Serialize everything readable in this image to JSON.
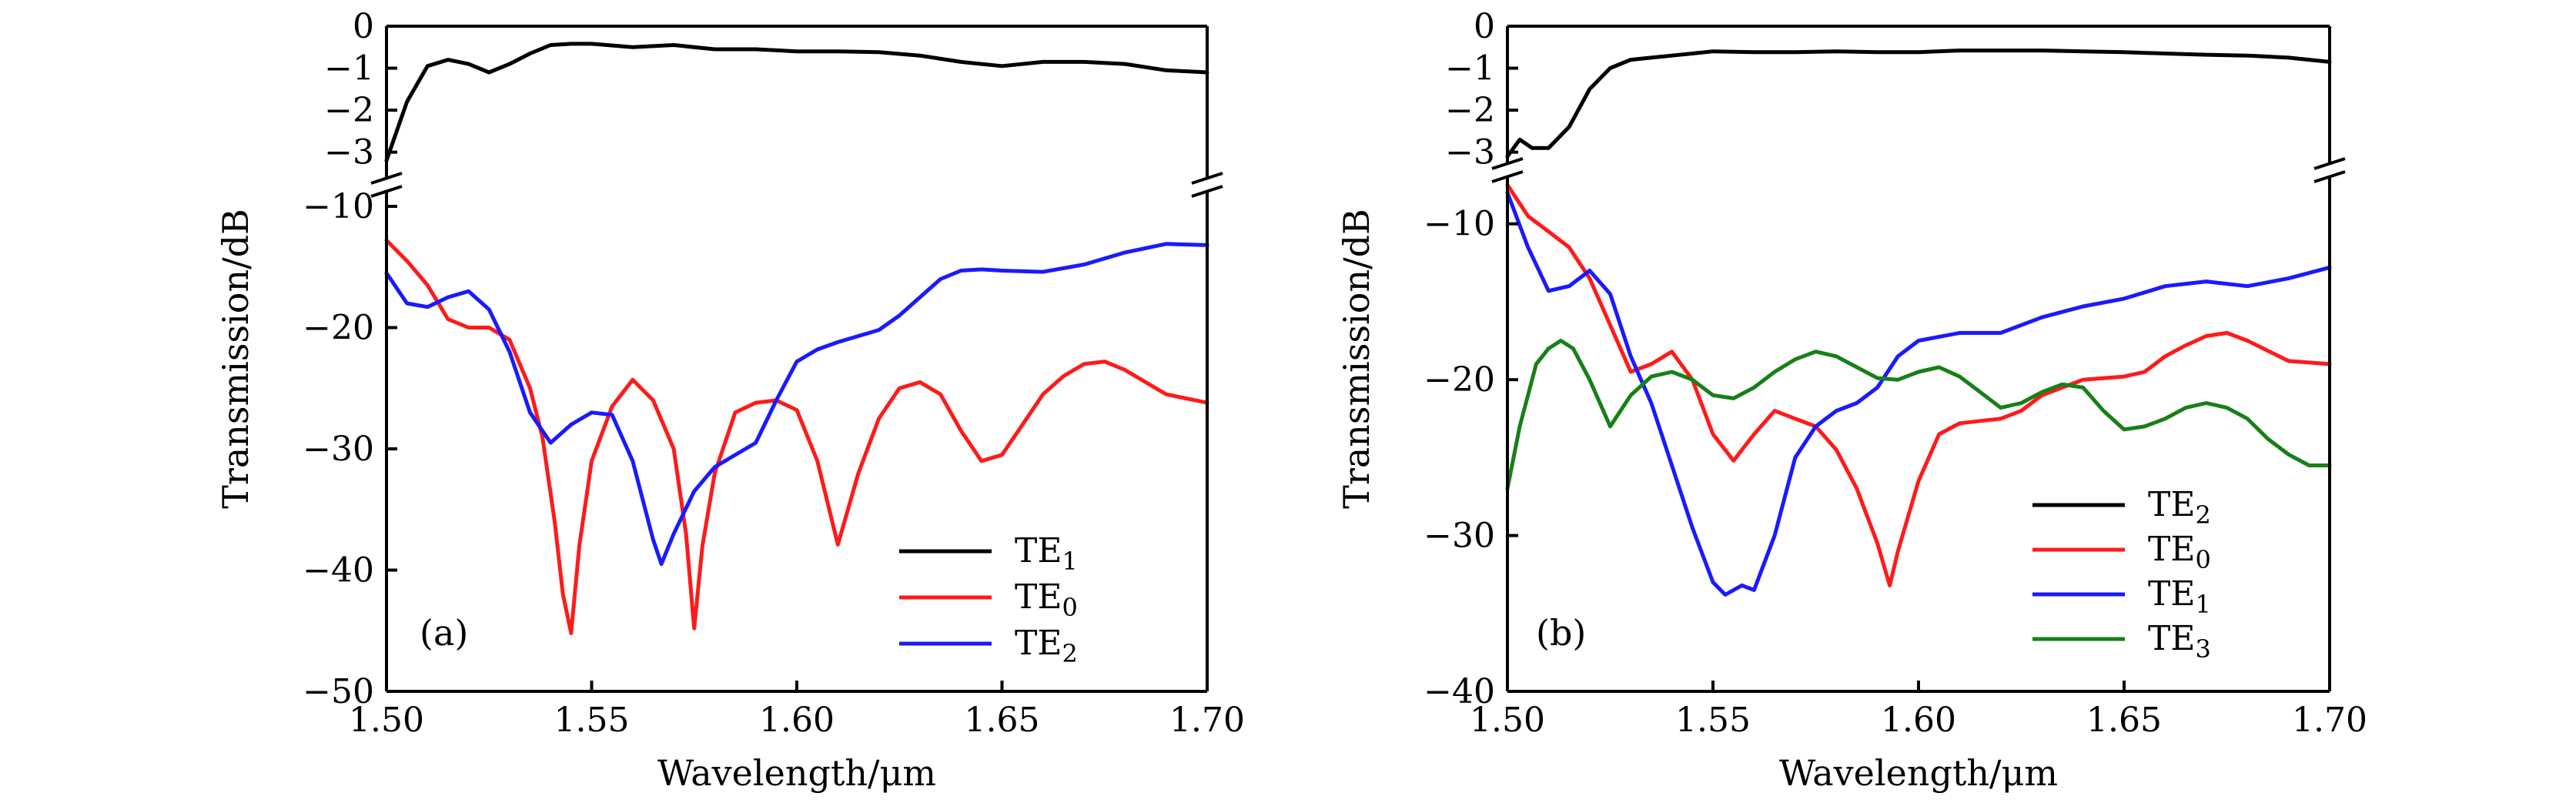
{
  "chart_data": [
    {
      "type": "line",
      "panel_label": "(a)",
      "xlabel": "Wavelength/μm",
      "ylabel": "Transmission/dB",
      "xlim": [
        1.5,
        1.7
      ],
      "x_ticks": [
        "1.50",
        "1.55",
        "1.60",
        "1.65",
        "1.70"
      ],
      "broken_y_axis": true,
      "upper_ylim": [
        -3.3,
        0
      ],
      "upper_y_ticks": [
        "0",
        "−1",
        "−2",
        "−3"
      ],
      "lower_ylim": [
        -50,
        -10
      ],
      "lower_y_ticks": [
        "−10",
        "−20",
        "−30",
        "−40",
        "−50"
      ],
      "legend_position": "bottom-right",
      "series": [
        {
          "name": "TE",
          "sub": "1",
          "color": "#000000",
          "section": "upper",
          "x": [
            1.5,
            1.505,
            1.51,
            1.515,
            1.52,
            1.525,
            1.53,
            1.535,
            1.54,
            1.545,
            1.55,
            1.56,
            1.57,
            1.58,
            1.59,
            1.6,
            1.61,
            1.62,
            1.63,
            1.64,
            1.65,
            1.66,
            1.67,
            1.68,
            1.69,
            1.7
          ],
          "y": [
            -3.2,
            -1.8,
            -0.95,
            -0.8,
            -0.9,
            -1.1,
            -0.9,
            -0.65,
            -0.45,
            -0.42,
            -0.42,
            -0.5,
            -0.45,
            -0.55,
            -0.55,
            -0.6,
            -0.6,
            -0.62,
            -0.7,
            -0.85,
            -0.95,
            -0.85,
            -0.85,
            -0.9,
            -1.05,
            -1.1
          ]
        },
        {
          "name": "TE",
          "sub": "0",
          "color": "#ff1a1a",
          "section": "lower",
          "x": [
            1.5,
            1.505,
            1.51,
            1.515,
            1.52,
            1.525,
            1.53,
            1.535,
            1.538,
            1.541,
            1.543,
            1.545,
            1.547,
            1.55,
            1.555,
            1.56,
            1.565,
            1.57,
            1.573,
            1.575,
            1.577,
            1.58,
            1.585,
            1.59,
            1.595,
            1.6,
            1.605,
            1.61,
            1.615,
            1.62,
            1.625,
            1.63,
            1.635,
            1.64,
            1.645,
            1.65,
            1.655,
            1.66,
            1.665,
            1.67,
            1.675,
            1.68,
            1.69,
            1.7
          ],
          "y": [
            -12.8,
            -14.5,
            -16.5,
            -19.3,
            -20.0,
            -20.0,
            -21.0,
            -25.0,
            -29.0,
            -36.0,
            -42.0,
            -45.2,
            -38.0,
            -31.0,
            -26.5,
            -24.3,
            -26.0,
            -30.0,
            -37.0,
            -44.8,
            -38.0,
            -32.0,
            -27.0,
            -26.2,
            -26.0,
            -26.8,
            -31.0,
            -37.9,
            -32.0,
            -27.5,
            -25.0,
            -24.5,
            -25.5,
            -28.5,
            -31.0,
            -30.5,
            -28.0,
            -25.5,
            -24.0,
            -23.0,
            -22.8,
            -23.5,
            -25.5,
            -26.2
          ]
        },
        {
          "name": "TE",
          "sub": "2",
          "color": "#1a1aff",
          "section": "lower",
          "x": [
            1.5,
            1.505,
            1.51,
            1.515,
            1.52,
            1.525,
            1.53,
            1.535,
            1.54,
            1.545,
            1.55,
            1.555,
            1.56,
            1.565,
            1.567,
            1.57,
            1.575,
            1.58,
            1.585,
            1.59,
            1.595,
            1.6,
            1.605,
            1.61,
            1.62,
            1.625,
            1.63,
            1.635,
            1.64,
            1.645,
            1.65,
            1.66,
            1.67,
            1.68,
            1.69,
            1.7
          ],
          "y": [
            -15.5,
            -18.0,
            -18.3,
            -17.5,
            -17.0,
            -18.5,
            -22.0,
            -27.0,
            -29.5,
            -28.0,
            -27.0,
            -27.2,
            -31.0,
            -37.5,
            -39.5,
            -37.0,
            -33.5,
            -31.5,
            -30.5,
            -29.5,
            -26.0,
            -22.8,
            -21.8,
            -21.2,
            -20.2,
            -19.0,
            -17.5,
            -16.0,
            -15.3,
            -15.2,
            -15.3,
            -15.4,
            -14.8,
            -13.8,
            -13.1,
            -13.2
          ]
        }
      ]
    },
    {
      "type": "line",
      "panel_label": "(b)",
      "xlabel": "Wavelength/μm",
      "ylabel": "Transmission/dB",
      "xlim": [
        1.5,
        1.7
      ],
      "x_ticks": [
        "1.50",
        "1.55",
        "1.60",
        "1.65",
        "1.70"
      ],
      "broken_y_axis": true,
      "upper_ylim": [
        -3.3,
        0
      ],
      "upper_y_ticks": [
        "0",
        "−1",
        "−2",
        "−3"
      ],
      "lower_ylim": [
        -40,
        -7
      ],
      "lower_y_ticks": [
        "−10",
        "−20",
        "−30",
        "−40"
      ],
      "legend_position": "bottom-right",
      "series": [
        {
          "name": "TE",
          "sub": "2",
          "color": "#000000",
          "section": "upper",
          "x": [
            1.5,
            1.503,
            1.506,
            1.51,
            1.515,
            1.52,
            1.525,
            1.53,
            1.535,
            1.54,
            1.545,
            1.55,
            1.56,
            1.57,
            1.58,
            1.59,
            1.6,
            1.61,
            1.62,
            1.63,
            1.64,
            1.65,
            1.66,
            1.67,
            1.68,
            1.69,
            1.7
          ],
          "y": [
            -3.1,
            -2.7,
            -2.9,
            -2.9,
            -2.4,
            -1.5,
            -1.0,
            -0.8,
            -0.75,
            -0.7,
            -0.65,
            -0.6,
            -0.62,
            -0.62,
            -0.6,
            -0.62,
            -0.62,
            -0.58,
            -0.58,
            -0.58,
            -0.6,
            -0.62,
            -0.65,
            -0.68,
            -0.7,
            -0.75,
            -0.85
          ]
        },
        {
          "name": "TE",
          "sub": "0",
          "color": "#ff1a1a",
          "section": "lower",
          "x": [
            1.5,
            1.505,
            1.51,
            1.515,
            1.52,
            1.525,
            1.53,
            1.535,
            1.54,
            1.545,
            1.55,
            1.555,
            1.56,
            1.565,
            1.57,
            1.575,
            1.58,
            1.585,
            1.59,
            1.593,
            1.595,
            1.6,
            1.605,
            1.61,
            1.62,
            1.625,
            1.63,
            1.64,
            1.65,
            1.655,
            1.66,
            1.665,
            1.67,
            1.675,
            1.68,
            1.69,
            1.7
          ],
          "y": [
            -7.5,
            -9.5,
            -10.5,
            -11.5,
            -13.5,
            -16.5,
            -19.5,
            -19.0,
            -18.2,
            -20.0,
            -23.5,
            -25.2,
            -23.5,
            -22.0,
            -22.5,
            -23.0,
            -24.5,
            -27.0,
            -30.5,
            -33.2,
            -31.0,
            -26.5,
            -23.5,
            -22.8,
            -22.5,
            -22.0,
            -21.0,
            -20.0,
            -19.8,
            -19.5,
            -18.5,
            -17.8,
            -17.2,
            -17.0,
            -17.5,
            -18.8,
            -19.0
          ]
        },
        {
          "name": "TE",
          "sub": "1",
          "color": "#1a1aff",
          "section": "lower",
          "x": [
            1.5,
            1.505,
            1.51,
            1.515,
            1.52,
            1.525,
            1.53,
            1.535,
            1.54,
            1.545,
            1.55,
            1.553,
            1.557,
            1.56,
            1.565,
            1.57,
            1.575,
            1.58,
            1.585,
            1.59,
            1.595,
            1.6,
            1.61,
            1.62,
            1.63,
            1.64,
            1.65,
            1.66,
            1.67,
            1.68,
            1.69,
            1.7
          ],
          "y": [
            -8.0,
            -11.5,
            -14.3,
            -14.0,
            -13.0,
            -14.5,
            -18.5,
            -21.5,
            -25.5,
            -29.5,
            -33.0,
            -33.8,
            -33.2,
            -33.5,
            -30.0,
            -25.0,
            -23.0,
            -22.0,
            -21.5,
            -20.5,
            -18.5,
            -17.5,
            -17.0,
            -17.0,
            -16.0,
            -15.3,
            -14.8,
            -14.0,
            -13.7,
            -14.0,
            -13.5,
            -12.8
          ]
        },
        {
          "name": "TE",
          "sub": "3",
          "color": "#178017",
          "section": "lower",
          "x": [
            1.5,
            1.503,
            1.507,
            1.51,
            1.513,
            1.516,
            1.52,
            1.525,
            1.53,
            1.535,
            1.54,
            1.545,
            1.55,
            1.555,
            1.56,
            1.565,
            1.57,
            1.575,
            1.58,
            1.585,
            1.59,
            1.595,
            1.6,
            1.605,
            1.61,
            1.615,
            1.62,
            1.625,
            1.63,
            1.635,
            1.64,
            1.645,
            1.65,
            1.655,
            1.66,
            1.665,
            1.67,
            1.675,
            1.68,
            1.685,
            1.69,
            1.695,
            1.7
          ],
          "y": [
            -27.0,
            -23.0,
            -19.0,
            -18.0,
            -17.5,
            -18.0,
            -20.0,
            -23.0,
            -21.0,
            -19.8,
            -19.5,
            -20.0,
            -21.0,
            -21.2,
            -20.5,
            -19.5,
            -18.7,
            -18.2,
            -18.5,
            -19.2,
            -19.9,
            -20.0,
            -19.5,
            -19.2,
            -19.8,
            -20.8,
            -21.8,
            -21.5,
            -20.8,
            -20.3,
            -20.5,
            -22.0,
            -23.2,
            -23.0,
            -22.5,
            -21.8,
            -21.5,
            -21.8,
            -22.5,
            -23.8,
            -24.8,
            -25.5,
            -25.5
          ]
        }
      ]
    }
  ]
}
